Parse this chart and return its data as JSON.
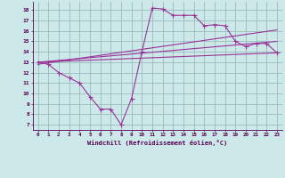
{
  "title": "",
  "xlabel": "Windchill (Refroidissement éolien,°C)",
  "ylabel": "",
  "bg_color": "#cce8e8",
  "line_color": "#993399",
  "grid_color": "#99bbbb",
  "x_ticks": [
    0,
    1,
    2,
    3,
    4,
    5,
    6,
    7,
    8,
    9,
    10,
    11,
    12,
    13,
    14,
    15,
    16,
    17,
    18,
    19,
    20,
    21,
    22,
    23
  ],
  "y_ticks": [
    7,
    8,
    9,
    10,
    11,
    12,
    13,
    14,
    15,
    16,
    17,
    18
  ],
  "ylim": [
    6.5,
    18.8
  ],
  "xlim": [
    -0.5,
    23.5
  ],
  "line1_x": [
    0,
    1,
    2,
    3,
    4,
    5,
    6,
    7,
    8,
    9,
    10,
    11,
    12,
    13,
    14,
    15,
    16,
    17,
    18,
    19,
    20,
    21,
    22,
    23
  ],
  "line1_y": [
    13.0,
    12.8,
    12.0,
    11.5,
    11.0,
    9.7,
    8.5,
    8.5,
    7.0,
    9.5,
    14.0,
    18.2,
    18.1,
    17.5,
    17.5,
    17.5,
    16.5,
    16.6,
    16.5,
    15.0,
    14.5,
    14.8,
    14.8,
    13.9
  ],
  "line2_x": [
    0,
    23
  ],
  "line2_y": [
    13.0,
    13.9
  ],
  "line3_x": [
    0,
    23
  ],
  "line3_y": [
    13.0,
    15.0
  ],
  "line4_x": [
    0,
    23
  ],
  "line4_y": [
    12.8,
    16.1
  ]
}
